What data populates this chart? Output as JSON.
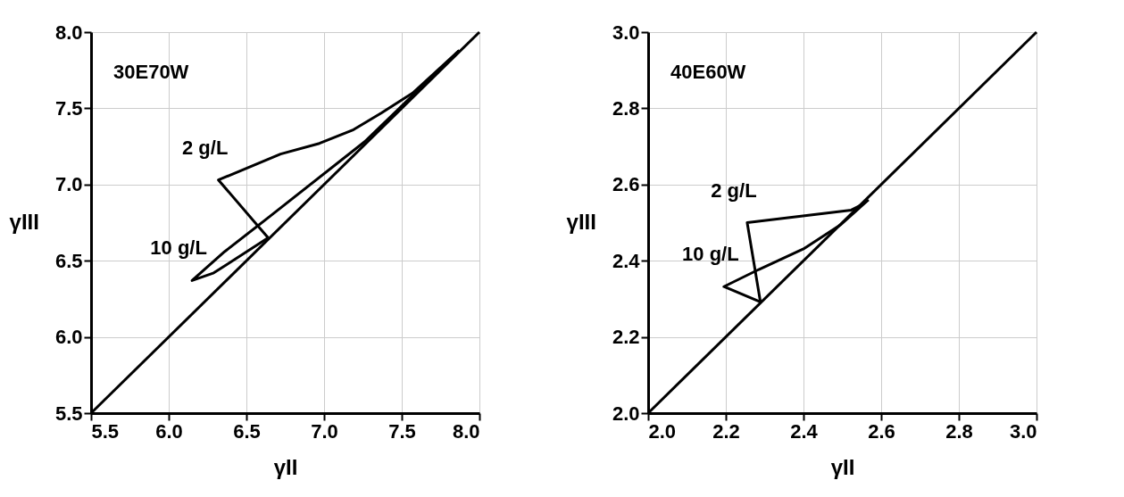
{
  "chart_data": [
    {
      "type": "line",
      "title": "30E70W",
      "xlabel": "γII",
      "ylabel": "γIII",
      "xlim": [
        5.5,
        8.0
      ],
      "ylim": [
        5.5,
        8.0
      ],
      "xticks": [
        5.5,
        {
          "value": 6,
          "label": "6.0"
        },
        6.5,
        {
          "value": 7,
          "label": "7.0"
        },
        7.5,
        {
          "value": 8,
          "label": "8.0"
        }
      ],
      "yticks": [
        5.5,
        {
          "value": 6,
          "label": "6.0"
        },
        6.5,
        {
          "value": 7,
          "label": "7.0"
        },
        7.5,
        {
          "value": 8,
          "label": "8.0"
        }
      ],
      "grid": true,
      "legend": false,
      "marker": "none",
      "line_style": "solid",
      "series": [
        {
          "color": "#000000",
          "x": [
            5.5,
            8.0
          ],
          "values": [
            5.5,
            8.0
          ]
        },
        {
          "name": "2 g/L",
          "color": "#000000",
          "x": [
            6.64,
            6.32,
            6.72,
            6.97,
            7.19,
            7.37,
            7.57,
            7.87
          ],
          "values": [
            6.65,
            7.03,
            7.2,
            7.27,
            7.36,
            7.47,
            7.6,
            7.88
          ]
        },
        {
          "name": "10 g/L",
          "color": "#000000",
          "x": [
            6.64,
            6.29,
            6.15,
            6.36,
            6.65,
            7.26,
            7.87
          ],
          "values": [
            6.65,
            6.42,
            6.37,
            6.56,
            6.79,
            7.28,
            7.88
          ]
        }
      ]
    },
    {
      "type": "line",
      "title": "40E60W",
      "xlabel": "γII",
      "ylabel": "γIII",
      "xlim": [
        2.0,
        3.0
      ],
      "ylim": [
        2.0,
        3.0
      ],
      "xticks": [
        {
          "value": 2,
          "label": "2.0"
        },
        2.2,
        2.4,
        2.6,
        2.8,
        {
          "value": 3,
          "label": "3.0"
        }
      ],
      "yticks": [
        {
          "value": 2,
          "label": "2.0"
        },
        2.2,
        2.4,
        2.6,
        2.8,
        {
          "value": 3,
          "label": "3.0"
        }
      ],
      "grid": true,
      "legend": false,
      "marker": "none",
      "line_style": "solid",
      "series": [
        {
          "color": "#000000",
          "x": [
            2.0,
            3.0
          ],
          "values": [
            2.0,
            3.0
          ]
        },
        {
          "name": "2 g/L",
          "color": "#000000",
          "x": [
            2.289,
            2.255,
            2.523,
            2.552,
            2.567
          ],
          "values": [
            2.292,
            2.5,
            2.533,
            2.548,
            2.56
          ]
        },
        {
          "name": "10 g/L",
          "color": "#000000",
          "x": [
            2.289,
            2.195,
            2.285,
            2.4,
            2.495,
            2.538,
            2.567
          ],
          "values": [
            2.292,
            2.332,
            2.377,
            2.431,
            2.494,
            2.533,
            2.56
          ]
        }
      ]
    }
  ]
}
